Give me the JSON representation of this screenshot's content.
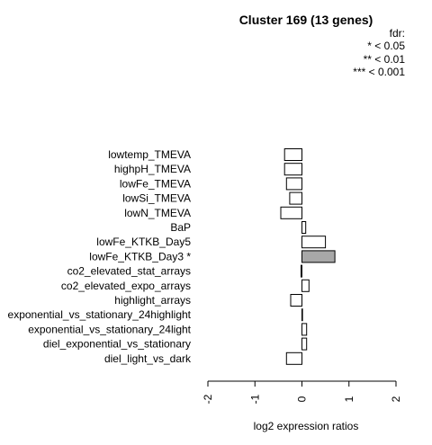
{
  "chart_data": {
    "type": "bar",
    "orientation": "horizontal",
    "title": "Cluster 169 (13 genes)",
    "xlabel": "log2 expression ratios",
    "ylabel": "",
    "xlim": [
      -2,
      2
    ],
    "xticks": [
      "-2",
      "-1",
      "0",
      "1",
      "2"
    ],
    "legend": {
      "placement": "top-right",
      "title": "fdr:",
      "entries": [
        "* < 0.05",
        "** < 0.01",
        "*** < 0.001"
      ]
    },
    "categories": [
      "lowtemp_TMEVA",
      "highpH_TMEVA",
      "lowFe_TMEVA",
      "lowSi_TMEVA",
      "lowN_TMEVA",
      "BaP",
      "lowFe_KTKB_Day5",
      "lowFe_KTKB_Day3 *",
      "co2_elevated_stat_arrays",
      "co2_elevated_expo_arrays",
      "highlight_arrays",
      "exponential_vs_stationary_24highlight",
      "exponential_vs_stationary_24light",
      "diel_exponential_vs_stationary",
      "diel_light_vs_dark"
    ],
    "values": [
      -0.37,
      -0.37,
      -0.33,
      -0.26,
      -0.45,
      0.08,
      0.5,
      0.7,
      -0.02,
      0.15,
      -0.24,
      0.0,
      0.1,
      0.1,
      -0.33
    ],
    "highlight": [
      false,
      false,
      false,
      false,
      false,
      false,
      false,
      true,
      false,
      false,
      false,
      false,
      false,
      false,
      false
    ],
    "colors": {
      "bar": "#ffffff",
      "highlight": "#a8a8a8",
      "stroke": "#000000"
    }
  }
}
